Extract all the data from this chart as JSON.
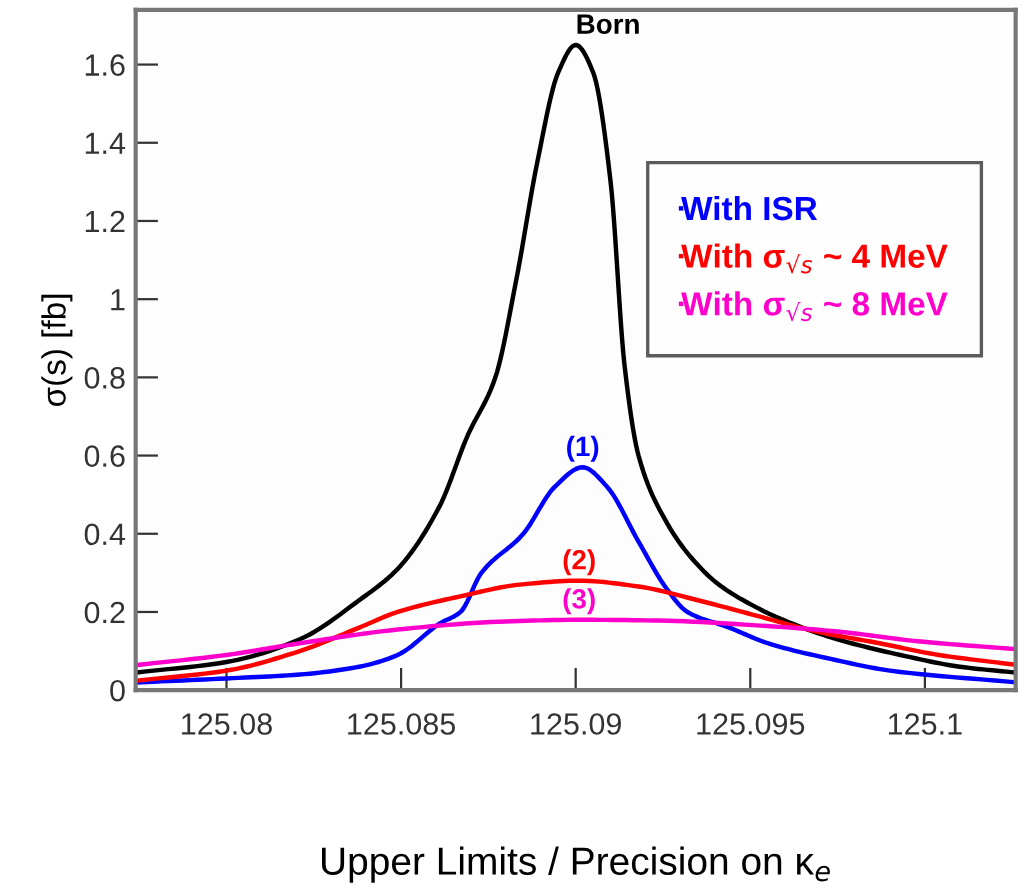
{
  "chart_data": {
    "type": "line",
    "xlabel": "Upper Limits / Precision on κ$_{e}$",
    "ylabel": "σ(s) [fb]",
    "xlim": [
      125.0774,
      125.1026
    ],
    "ylim": [
      0,
      1.74
    ],
    "xticks": [
      125.08,
      125.085,
      125.09,
      125.095,
      125.1
    ],
    "yticks": [
      0,
      0.2,
      0.4,
      0.6,
      0.8,
      1,
      1.2,
      1.4,
      1.6
    ],
    "grid": false,
    "legend": "top right",
    "marker": "none",
    "line_style": "solid",
    "series": [
      {
        "color": "#000000",
        "x": [
          125.0775,
          125.08,
          125.0821,
          125.0838,
          125.0849,
          125.0861,
          125.0869,
          125.0877,
          125.0883,
          125.0889,
          125.0895,
          125.09,
          125.0905,
          125.091,
          125.0914,
          125.0918,
          125.0926,
          125.0933,
          125.0941,
          125.095,
          125.0958,
          125.0975,
          125.0993,
          125.101,
          125.1026
        ],
        "values": [
          0.046,
          0.072,
          0.13,
          0.23,
          0.31,
          0.47,
          0.65,
          0.8,
          1.05,
          1.35,
          1.58,
          1.65,
          1.58,
          1.3,
          0.83,
          0.6,
          0.43,
          0.34,
          0.27,
          0.22,
          0.185,
          0.13,
          0.09,
          0.06,
          0.045
        ]
      },
      {
        "name": "With ISR",
        "color": "#0000ff",
        "x": [
          125.0775,
          125.08,
          125.0821,
          125.0838,
          125.0849,
          125.0861,
          125.0867,
          125.0873,
          125.0885,
          125.0894,
          125.0902,
          125.0909,
          125.0918,
          125.0926,
          125.0932,
          125.0944,
          125.0955,
          125.0973,
          125.099,
          125.1026
        ],
        "values": [
          0.02,
          0.03,
          0.04,
          0.06,
          0.09,
          0.17,
          0.2,
          0.3,
          0.4,
          0.52,
          0.57,
          0.52,
          0.38,
          0.26,
          0.2,
          0.16,
          0.12,
          0.08,
          0.05,
          0.02
        ]
      },
      {
        "name": "With σ$_{√s}$ ~ 4 MeV",
        "color": "#ff0000",
        "x": [
          125.0775,
          125.08,
          125.0821,
          125.0838,
          125.0849,
          125.0867,
          125.0884,
          125.0901,
          125.0918,
          125.0935,
          125.0952,
          125.0969,
          125.0987,
          125.1004,
          125.1026
        ],
        "values": [
          0.025,
          0.05,
          0.1,
          0.16,
          0.2,
          0.24,
          0.27,
          0.28,
          0.265,
          0.23,
          0.19,
          0.15,
          0.12,
          0.09,
          0.065
        ]
      },
      {
        "name": "With σ$_{√s}$ ~ 8 MeV",
        "color": "#ff00cc",
        "x": [
          125.0775,
          125.08,
          125.0821,
          125.0849,
          125.0878,
          125.0901,
          125.0924,
          125.0953,
          125.0975,
          125.0998,
          125.1026
        ],
        "values": [
          0.065,
          0.09,
          0.12,
          0.155,
          0.175,
          0.18,
          0.178,
          0.165,
          0.15,
          0.125,
          0.105
        ]
      }
    ],
    "annotations": [
      "Born",
      "(1)",
      "(2)",
      "(3)"
    ]
  }
}
